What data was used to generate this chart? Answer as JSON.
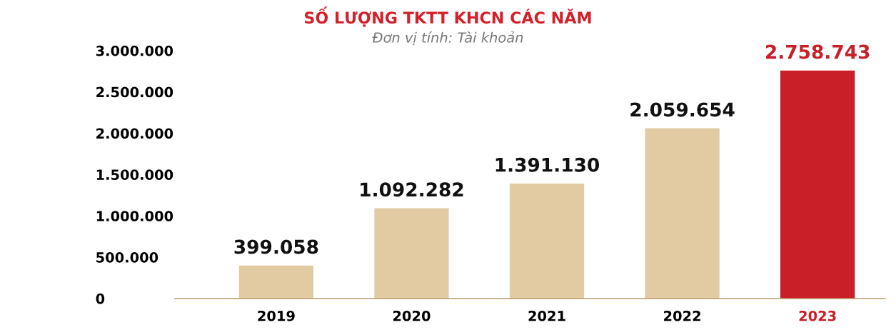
{
  "chart_data": {
    "type": "bar",
    "title": "SỐ LƯỢNG TKTT KHCN CÁC NĂM",
    "subtitle": "Đơn vị tính: Tài khoản",
    "categories": [
      "2019",
      "2020",
      "2021",
      "2022",
      "2023"
    ],
    "values": [
      399058,
      1092282,
      1391130,
      2059654,
      2758743
    ],
    "colors": [
      "#e2cba2",
      "#e2cba2",
      "#e2cba2",
      "#e2cba2",
      "#c91f28"
    ],
    "value_labels": [
      "399.058",
      "1.092.282",
      "1.391.130",
      "2.059.654",
      "2.758.743"
    ],
    "ylim": [
      0,
      3000000
    ],
    "yticks": [
      {
        "value": 0,
        "label": "0"
      },
      {
        "value": 500000,
        "label": "500.000"
      },
      {
        "value": 1000000,
        "label": "1.000.000"
      },
      {
        "value": 1500000,
        "label": "1.500.000"
      },
      {
        "value": 2000000,
        "label": "2.000.000"
      },
      {
        "value": 2500000,
        "label": "2.500.000"
      },
      {
        "value": 3000000,
        "label": "3.000.000"
      }
    ],
    "grid": false,
    "legend": false
  }
}
